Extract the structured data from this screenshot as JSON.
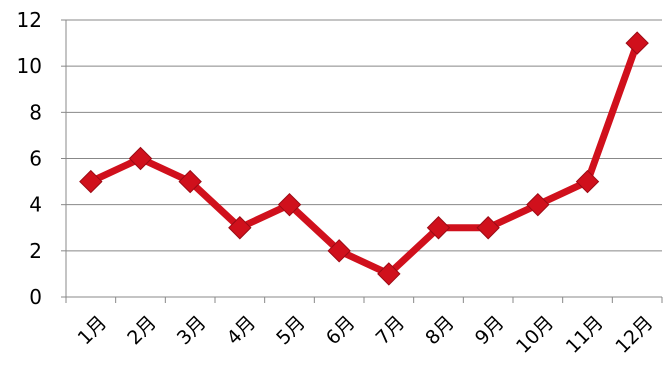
{
  "chart_data": {
    "type": "line",
    "title": "",
    "xlabel": "",
    "ylabel": "",
    "categories": [
      "1月",
      "2月",
      "3月",
      "4月",
      "5月",
      "6月",
      "7月",
      "8月",
      "9月",
      "10月",
      "11月",
      "12月"
    ],
    "series": [
      {
        "values": [
          5,
          6,
          5,
          3,
          4,
          2,
          1,
          3,
          3,
          4,
          5,
          11
        ]
      }
    ],
    "ylim": [
      0,
      12
    ],
    "yticks": [
      0,
      2,
      4,
      6,
      8,
      10,
      12
    ],
    "grid": true,
    "legend": "none",
    "line_color": "#d0101c",
    "marker": "diamond"
  }
}
